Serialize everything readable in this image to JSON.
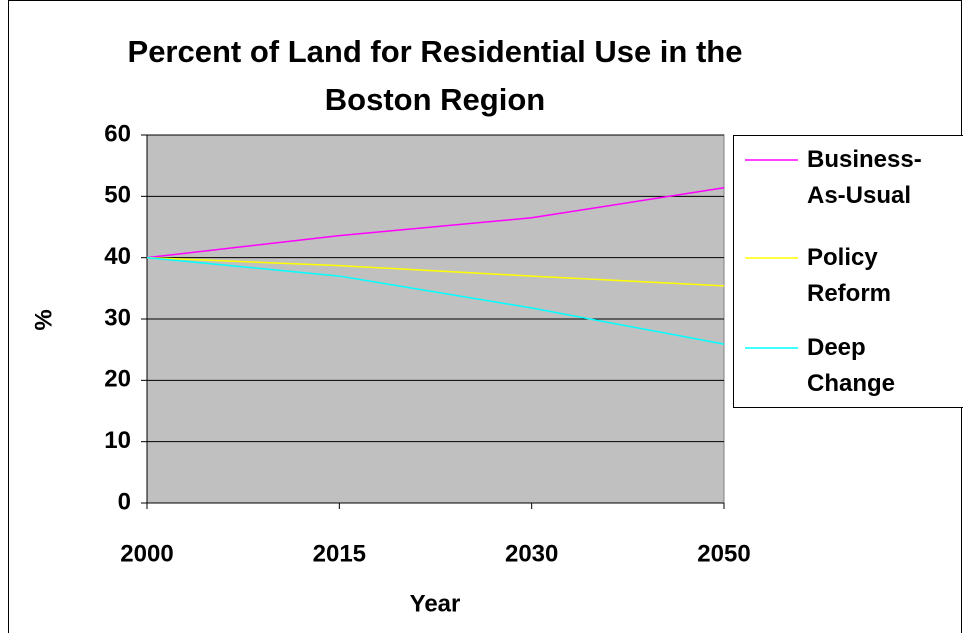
{
  "chart_data": {
    "type": "line",
    "title": "Percent of Land for Residential Use in the Boston Region",
    "x_label": "Year",
    "y_label": "%",
    "categories": [
      "2000",
      "2015",
      "2030",
      "2050"
    ],
    "series": [
      {
        "name": "Business-As-Usual",
        "color": "#ff00ff",
        "values": [
          40,
          43.6,
          46.5,
          51.4
        ]
      },
      {
        "name": "Policy Reform",
        "color": "#ffff00",
        "values": [
          40,
          38.7,
          37,
          35.4
        ]
      },
      {
        "name": "Deep Change",
        "color": "#00ffff",
        "values": [
          40,
          37,
          31.8,
          25.9
        ]
      }
    ],
    "ylim": [
      0,
      60
    ],
    "yticks": [
      0,
      10,
      20,
      30,
      40,
      50,
      60
    ],
    "grid": true,
    "plot_background": "#c0c0c0",
    "legend": "right"
  }
}
